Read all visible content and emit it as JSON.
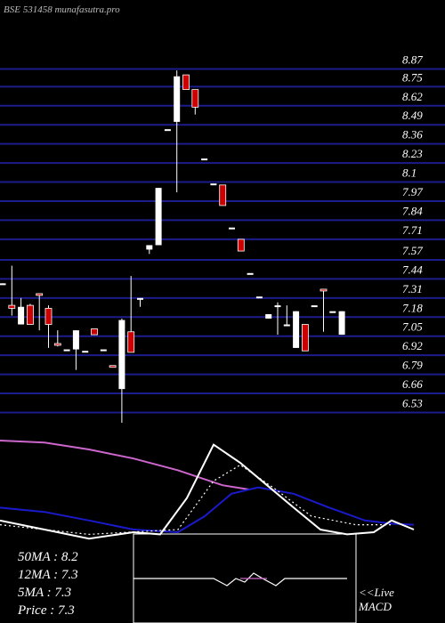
{
  "chart_data": [
    {
      "type": "candlestick",
      "title": "BSE 531458  munafasutra.pro",
      "open": [
        7.4,
        7.26,
        7.13,
        7.26,
        7.34,
        7.24,
        7.0,
        6.96,
        6.96,
        6.95,
        7.1,
        6.96,
        6.85,
        6.69,
        7.08,
        7.31,
        7.64,
        7.67,
        8.46,
        8.51,
        8.83,
        8.73,
        8.26,
        8.09,
        8.08,
        7.79,
        7.71,
        7.48,
        7.32,
        7.17,
        7.26,
        7.13,
        6.97,
        7.13,
        7.26,
        7.37,
        7.22,
        7.06
      ],
      "high": [
        7.41,
        7.53,
        7.31,
        7.27,
        7.34,
        7.26,
        7.09,
        6.96,
        7.09,
        6.95,
        7.1,
        6.96,
        6.85,
        7.17,
        7.46,
        7.31,
        7.67,
        8.06,
        8.46,
        8.86,
        8.83,
        8.73,
        8.26,
        8.09,
        8.08,
        7.79,
        7.71,
        7.48,
        7.32,
        7.2,
        7.28,
        7.26,
        7.22,
        7.13,
        7.26,
        7.37,
        7.22,
        7.22
      ],
      "low": [
        7.4,
        7.19,
        7.13,
        7.13,
        7.09,
        6.97,
        6.98,
        6.96,
        6.82,
        6.95,
        7.06,
        6.96,
        6.84,
        6.46,
        6.94,
        7.25,
        7.61,
        7.67,
        8.46,
        8.03,
        8.73,
        8.56,
        8.26,
        8.09,
        7.94,
        7.79,
        7.63,
        7.48,
        7.32,
        7.17,
        7.06,
        7.13,
        6.97,
        6.95,
        7.26,
        7.08,
        7.22,
        7.06
      ],
      "close": [
        7.41,
        7.24,
        7.25,
        7.13,
        7.33,
        7.13,
        6.99,
        6.96,
        7.09,
        6.95,
        7.06,
        6.96,
        6.84,
        7.16,
        6.94,
        7.31,
        7.67,
        8.06,
        8.46,
        8.82,
        8.73,
        8.61,
        8.26,
        8.09,
        7.94,
        7.79,
        7.63,
        7.48,
        7.32,
        7.2,
        7.26,
        7.13,
        7.22,
        6.95,
        7.26,
        7.36,
        7.22,
        7.22
      ],
      "up_color": "#ffffff",
      "down_color": "#cc0000",
      "ylim": [
        6.43,
        9.34
      ],
      "yticks": [
        8.87,
        8.75,
        8.62,
        8.49,
        8.36,
        8.23,
        8.1,
        7.97,
        7.84,
        7.71,
        7.57,
        7.44,
        7.31,
        7.18,
        7.05,
        6.92,
        6.79,
        6.66,
        6.53
      ],
      "grid": true
    },
    {
      "type": "line",
      "xlim": [
        0,
        500
      ],
      "ylim": [
        0,
        100
      ],
      "series": [
        {
          "color": "#cc66cc",
          "x": [
            0,
            50,
            100,
            150,
            200,
            250,
            280
          ],
          "values": [
            95.8,
            94,
            87.5,
            79,
            68,
            54,
            50
          ]
        },
        {
          "color": "#1a1acc",
          "x": [
            0,
            50,
            100,
            150,
            200,
            230,
            260,
            290,
            330,
            370,
            410,
            440,
            465
          ],
          "values": [
            33,
            29,
            21,
            12.5,
            10,
            25,
            46,
            52,
            46,
            33,
            21,
            18,
            17
          ]
        },
        {
          "color": "#ffffff",
          "x": [
            0,
            50,
            100,
            150,
            180,
            210,
            240,
            270,
            300,
            330,
            360,
            390,
            420,
            440,
            465
          ],
          "values": [
            21,
            12.5,
            4,
            10,
            8,
            42,
            92,
            75,
            54,
            33,
            12.5,
            8,
            10,
            21,
            12.5
          ]
        },
        {
          "color": "#ffffff",
          "dashed": true,
          "x": [
            0,
            100,
            200,
            240,
            270,
            310,
            350,
            400,
            440
          ],
          "values": [
            17,
            8,
            12.5,
            58,
            73,
            50,
            25,
            17,
            17
          ]
        }
      ],
      "annotations": [
        "50MA : 8.2",
        "12MA : 7.3",
        "5MA : 7.3",
        "Price  : 7.3"
      ]
    },
    {
      "type": "line",
      "xlim": [
        150,
        400
      ],
      "ylim": [
        -1,
        1
      ],
      "series": [
        {
          "color": "#ffffff",
          "x": [
            150,
            240,
            255,
            265,
            275,
            285,
            295,
            310,
            320,
            390
          ],
          "values": [
            0,
            0,
            -0.4,
            0,
            -0.2,
            0.3,
            0,
            -0.4,
            0,
            0
          ]
        },
        {
          "color": "#cc66cc",
          "x": [
            270,
            300
          ],
          "values": [
            0,
            0
          ]
        }
      ],
      "annotations": [
        "<<Live",
        "MACD"
      ]
    }
  ]
}
